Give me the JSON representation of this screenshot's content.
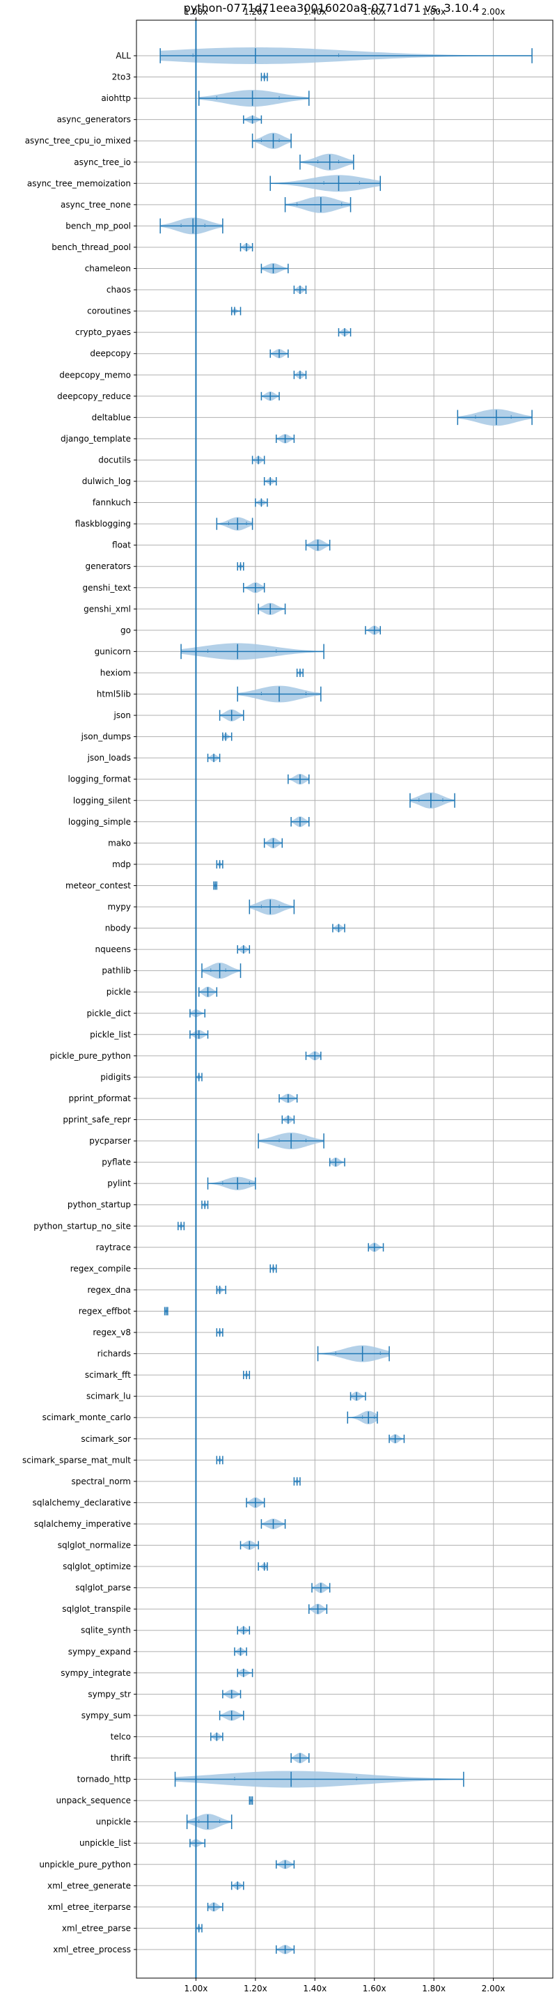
{
  "chart_data": {
    "type": "violin",
    "title": "python-0771d71eea30016020a8-0771d71 vs. 3.10.4",
    "xlabel": "",
    "ylabel": "",
    "xlim": [
      0.8,
      2.2
    ],
    "x_ticks": [
      1.0,
      1.2,
      1.4,
      1.6,
      1.8,
      2.0
    ],
    "x_tick_labels": [
      "1.00x",
      "1.20x",
      "1.40x",
      "1.60x",
      "1.80x",
      "2.00x"
    ],
    "x_tick_labels_top": true,
    "x_tick_labels_bottom": true,
    "reference_line": 1.0,
    "grid": true,
    "colors": {
      "violin_fill": "#a6c8e4",
      "line": "#1f77b4",
      "grid": "#b0b0b0"
    },
    "benchmarks": [
      {
        "name": "ALL",
        "min": 0.88,
        "mean": 1.2,
        "max": 2.13,
        "p_low": 0.99,
        "p_high": 1.48,
        "spread": 0.25
      },
      {
        "name": "2to3",
        "min": 1.22,
        "mean": 1.23,
        "max": 1.24,
        "spread": 0.01
      },
      {
        "name": "aiohttp",
        "min": 1.01,
        "mean": 1.19,
        "max": 1.38,
        "p_low": 1.07,
        "p_high": 1.28,
        "spread": 0.12
      },
      {
        "name": "async_generators",
        "min": 1.16,
        "mean": 1.19,
        "max": 1.22,
        "spread": 0.02
      },
      {
        "name": "async_tree_cpu_io_mixed",
        "min": 1.19,
        "mean": 1.26,
        "max": 1.32,
        "p_low": 1.22,
        "p_high": 1.28,
        "spread": 0.05
      },
      {
        "name": "async_tree_io",
        "min": 1.35,
        "mean": 1.45,
        "max": 1.53,
        "p_low": 1.41,
        "p_high": 1.48,
        "spread": 0.06
      },
      {
        "name": "async_tree_memoization",
        "min": 1.25,
        "mean": 1.48,
        "max": 1.62,
        "p_low": 1.43,
        "p_high": 1.55,
        "spread": 0.1
      },
      {
        "name": "async_tree_none",
        "min": 1.3,
        "mean": 1.42,
        "max": 1.52,
        "p_low": 1.34,
        "p_high": 1.49,
        "spread": 0.08
      },
      {
        "name": "bench_mp_pool",
        "min": 0.88,
        "mean": 0.99,
        "max": 1.09,
        "p_low": 0.95,
        "p_high": 1.03,
        "spread": 0.08
      },
      {
        "name": "bench_thread_pool",
        "min": 1.15,
        "mean": 1.17,
        "max": 1.19,
        "spread": 0.02
      },
      {
        "name": "chameleon",
        "min": 1.22,
        "mean": 1.26,
        "max": 1.31,
        "spread": 0.03
      },
      {
        "name": "chaos",
        "min": 1.33,
        "mean": 1.35,
        "max": 1.37,
        "spread": 0.02
      },
      {
        "name": "coroutines",
        "min": 1.12,
        "mean": 1.13,
        "max": 1.15,
        "spread": 0.01
      },
      {
        "name": "crypto_pyaes",
        "min": 1.48,
        "mean": 1.5,
        "max": 1.52,
        "spread": 0.02
      },
      {
        "name": "deepcopy",
        "min": 1.25,
        "mean": 1.28,
        "max": 1.31,
        "spread": 0.025
      },
      {
        "name": "deepcopy_memo",
        "min": 1.33,
        "mean": 1.35,
        "max": 1.37,
        "spread": 0.02
      },
      {
        "name": "deepcopy_reduce",
        "min": 1.22,
        "mean": 1.25,
        "max": 1.28,
        "spread": 0.025
      },
      {
        "name": "deltablue",
        "min": 1.88,
        "mean": 2.01,
        "max": 2.13,
        "p_low": 1.94,
        "p_high": 2.06,
        "spread": 0.07
      },
      {
        "name": "django_template",
        "min": 1.27,
        "mean": 1.3,
        "max": 1.33,
        "spread": 0.025
      },
      {
        "name": "docutils",
        "min": 1.19,
        "mean": 1.21,
        "max": 1.23,
        "spread": 0.02
      },
      {
        "name": "dulwich_log",
        "min": 1.23,
        "mean": 1.25,
        "max": 1.27,
        "spread": 0.015
      },
      {
        "name": "fannkuch",
        "min": 1.2,
        "mean": 1.22,
        "max": 1.24,
        "spread": 0.015
      },
      {
        "name": "flaskblogging",
        "min": 1.07,
        "mean": 1.14,
        "max": 1.19,
        "p_low": 1.11,
        "p_high": 1.17,
        "spread": 0.04
      },
      {
        "name": "float",
        "min": 1.37,
        "mean": 1.41,
        "max": 1.45,
        "spread": 0.035
      },
      {
        "name": "generators",
        "min": 1.14,
        "mean": 1.15,
        "max": 1.16,
        "spread": 0.01
      },
      {
        "name": "genshi_text",
        "min": 1.16,
        "mean": 1.2,
        "max": 1.23,
        "spread": 0.03
      },
      {
        "name": "genshi_xml",
        "min": 1.21,
        "mean": 1.25,
        "max": 1.3,
        "spread": 0.035
      },
      {
        "name": "go",
        "min": 1.57,
        "mean": 1.6,
        "max": 1.62,
        "spread": 0.025
      },
      {
        "name": "gunicorn",
        "min": 0.95,
        "mean": 1.14,
        "max": 1.43,
        "p_low": 1.04,
        "p_high": 1.27,
        "spread": 0.1
      },
      {
        "name": "hexiom",
        "min": 1.34,
        "mean": 1.35,
        "max": 1.36,
        "spread": 0.01
      },
      {
        "name": "html5lib",
        "min": 1.14,
        "mean": 1.28,
        "max": 1.42,
        "p_low": 1.22,
        "p_high": 1.37,
        "spread": 0.12
      },
      {
        "name": "json",
        "min": 1.08,
        "mean": 1.12,
        "max": 1.16,
        "spread": 0.035
      },
      {
        "name": "json_dumps",
        "min": 1.09,
        "mean": 1.1,
        "max": 1.12,
        "spread": 0.015
      },
      {
        "name": "json_loads",
        "min": 1.04,
        "mean": 1.06,
        "max": 1.08,
        "spread": 0.02
      },
      {
        "name": "logging_format",
        "min": 1.31,
        "mean": 1.35,
        "max": 1.38,
        "spread": 0.03
      },
      {
        "name": "logging_silent",
        "min": 1.72,
        "mean": 1.79,
        "max": 1.87,
        "p_low": 1.75,
        "p_high": 1.83,
        "spread": 0.05
      },
      {
        "name": "logging_simple",
        "min": 1.32,
        "mean": 1.35,
        "max": 1.38,
        "spread": 0.03
      },
      {
        "name": "mako",
        "min": 1.23,
        "mean": 1.26,
        "max": 1.29,
        "spread": 0.03
      },
      {
        "name": "mdp",
        "min": 1.07,
        "mean": 1.08,
        "max": 1.09,
        "spread": 0.01
      },
      {
        "name": "meteor_contest",
        "min": 1.06,
        "mean": 1.065,
        "max": 1.07,
        "spread": 0.005
      },
      {
        "name": "mypy",
        "min": 1.18,
        "mean": 1.25,
        "max": 1.33,
        "p_low": 1.22,
        "p_high": 1.28,
        "spread": 0.05
      },
      {
        "name": "nbody",
        "min": 1.46,
        "mean": 1.48,
        "max": 1.5,
        "spread": 0.02
      },
      {
        "name": "nqueens",
        "min": 1.14,
        "mean": 1.16,
        "max": 1.18,
        "spread": 0.02
      },
      {
        "name": "pathlib",
        "min": 1.02,
        "mean": 1.08,
        "max": 1.15,
        "p_low": 1.05,
        "p_high": 1.1,
        "spread": 0.05
      },
      {
        "name": "pickle",
        "min": 1.01,
        "mean": 1.04,
        "max": 1.07,
        "spread": 0.03
      },
      {
        "name": "pickle_dict",
        "min": 0.98,
        "mean": 1.0,
        "max": 1.03,
        "spread": 0.02
      },
      {
        "name": "pickle_list",
        "min": 0.98,
        "mean": 1.01,
        "max": 1.04,
        "spread": 0.025
      },
      {
        "name": "pickle_pure_python",
        "min": 1.37,
        "mean": 1.4,
        "max": 1.42,
        "spread": 0.025
      },
      {
        "name": "pidigits",
        "min": 1.0,
        "mean": 1.01,
        "max": 1.02,
        "spread": 0.01
      },
      {
        "name": "pprint_pformat",
        "min": 1.28,
        "mean": 1.31,
        "max": 1.34,
        "spread": 0.025
      },
      {
        "name": "pprint_safe_repr",
        "min": 1.29,
        "mean": 1.31,
        "max": 1.33,
        "spread": 0.02
      },
      {
        "name": "pycparser",
        "min": 1.21,
        "mean": 1.32,
        "max": 1.43,
        "p_low": 1.28,
        "p_high": 1.37,
        "spread": 0.08
      },
      {
        "name": "pyflate",
        "min": 1.45,
        "mean": 1.47,
        "max": 1.5,
        "spread": 0.025
      },
      {
        "name": "pylint",
        "min": 1.04,
        "mean": 1.14,
        "max": 1.2,
        "p_low": 1.09,
        "p_high": 1.18,
        "spread": 0.04
      },
      {
        "name": "python_startup",
        "min": 1.02,
        "mean": 1.03,
        "max": 1.04,
        "spread": 0.01
      },
      {
        "name": "python_startup_no_site",
        "min": 0.94,
        "mean": 0.95,
        "max": 0.96,
        "spread": 0.01
      },
      {
        "name": "raytrace",
        "min": 1.58,
        "mean": 1.6,
        "max": 1.63,
        "spread": 0.025
      },
      {
        "name": "regex_compile",
        "min": 1.25,
        "mean": 1.26,
        "max": 1.27,
        "spread": 0.01
      },
      {
        "name": "regex_dna",
        "min": 1.07,
        "mean": 1.08,
        "max": 1.1,
        "spread": 0.015
      },
      {
        "name": "regex_effbot",
        "min": 0.895,
        "mean": 0.9,
        "max": 0.905,
        "spread": 0.005
      },
      {
        "name": "regex_v8",
        "min": 1.07,
        "mean": 1.08,
        "max": 1.09,
        "spread": 0.01
      },
      {
        "name": "richards",
        "min": 1.41,
        "mean": 1.56,
        "max": 1.65,
        "p_low": 1.47,
        "p_high": 1.62,
        "spread": 0.12
      },
      {
        "name": "scimark_fft",
        "min": 1.16,
        "mean": 1.17,
        "max": 1.18,
        "spread": 0.008
      },
      {
        "name": "scimark_lu",
        "min": 1.52,
        "mean": 1.54,
        "max": 1.57,
        "spread": 0.025
      },
      {
        "name": "scimark_monte_carlo",
        "min": 1.51,
        "mean": 1.58,
        "max": 1.61,
        "p_low": 1.56,
        "p_high": 1.6,
        "spread": 0.04
      },
      {
        "name": "scimark_sor",
        "min": 1.65,
        "mean": 1.67,
        "max": 1.7,
        "spread": 0.025
      },
      {
        "name": "scimark_sparse_mat_mult",
        "min": 1.07,
        "mean": 1.08,
        "max": 1.09,
        "spread": 0.008
      },
      {
        "name": "spectral_norm",
        "min": 1.33,
        "mean": 1.34,
        "max": 1.35,
        "spread": 0.008
      },
      {
        "name": "sqlalchemy_declarative",
        "min": 1.17,
        "mean": 1.2,
        "max": 1.23,
        "spread": 0.03
      },
      {
        "name": "sqlalchemy_imperative",
        "min": 1.22,
        "mean": 1.26,
        "max": 1.3,
        "spread": 0.03
      },
      {
        "name": "sqlglot_normalize",
        "min": 1.15,
        "mean": 1.18,
        "max": 1.21,
        "spread": 0.025
      },
      {
        "name": "sqlglot_optimize",
        "min": 1.21,
        "mean": 1.23,
        "max": 1.24,
        "spread": 0.015
      },
      {
        "name": "sqlglot_parse",
        "min": 1.39,
        "mean": 1.42,
        "max": 1.45,
        "spread": 0.03
      },
      {
        "name": "sqlglot_transpile",
        "min": 1.38,
        "mean": 1.41,
        "max": 1.44,
        "spread": 0.03
      },
      {
        "name": "sqlite_synth",
        "min": 1.14,
        "mean": 1.16,
        "max": 1.18,
        "spread": 0.02
      },
      {
        "name": "sympy_expand",
        "min": 1.13,
        "mean": 1.15,
        "max": 1.17,
        "spread": 0.02
      },
      {
        "name": "sympy_integrate",
        "min": 1.14,
        "mean": 1.16,
        "max": 1.19,
        "spread": 0.02
      },
      {
        "name": "sympy_str",
        "min": 1.09,
        "mean": 1.12,
        "max": 1.15,
        "spread": 0.025
      },
      {
        "name": "sympy_sum",
        "min": 1.08,
        "mean": 1.12,
        "max": 1.16,
        "spread": 0.03
      },
      {
        "name": "telco",
        "min": 1.05,
        "mean": 1.07,
        "max": 1.09,
        "spread": 0.02
      },
      {
        "name": "thrift",
        "min": 1.32,
        "mean": 1.35,
        "max": 1.38,
        "spread": 0.03
      },
      {
        "name": "tornado_http",
        "min": 0.93,
        "mean": 1.32,
        "max": 1.9,
        "p_low": 1.13,
        "p_high": 1.54,
        "spread": 0.12
      },
      {
        "name": "unpack_sequence",
        "min": 1.18,
        "mean": 1.185,
        "max": 1.19,
        "spread": 0.005
      },
      {
        "name": "unpickle",
        "min": 0.97,
        "mean": 1.04,
        "max": 1.12,
        "p_low": 1.01,
        "p_high": 1.08,
        "spread": 0.05
      },
      {
        "name": "unpickle_list",
        "min": 0.98,
        "mean": 1.0,
        "max": 1.03,
        "spread": 0.02
      },
      {
        "name": "unpickle_pure_python",
        "min": 1.27,
        "mean": 1.3,
        "max": 1.33,
        "spread": 0.025
      },
      {
        "name": "xml_etree_generate",
        "min": 1.12,
        "mean": 1.14,
        "max": 1.16,
        "spread": 0.02
      },
      {
        "name": "xml_etree_iterparse",
        "min": 1.04,
        "mean": 1.06,
        "max": 1.09,
        "spread": 0.025
      },
      {
        "name": "xml_etree_parse",
        "min": 1.0,
        "mean": 1.01,
        "max": 1.02,
        "spread": 0.01
      },
      {
        "name": "xml_etree_process",
        "min": 1.27,
        "mean": 1.3,
        "max": 1.33,
        "spread": 0.025
      }
    ]
  }
}
